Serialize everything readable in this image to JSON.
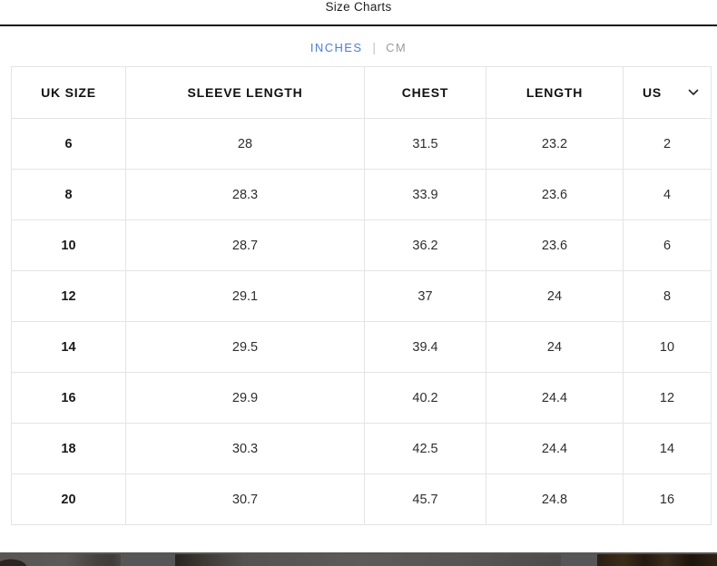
{
  "header": {
    "title": "Size Charts"
  },
  "tabs": {
    "inches_label": "INCHES",
    "separator": "|",
    "cm_label": "CM",
    "active": "INCHES",
    "active_color": "#4a80d9",
    "inactive_color": "#9b9b9b"
  },
  "table": {
    "columns": [
      "UK SIZE",
      "SLEEVE LENGTH",
      "CHEST",
      "LENGTH",
      "US"
    ],
    "us_column": {
      "label": "US",
      "icon": "chevron-down-icon"
    },
    "rows": [
      [
        "6",
        "28",
        "31.5",
        "23.2",
        "2"
      ],
      [
        "8",
        "28.3",
        "33.9",
        "23.6",
        "4"
      ],
      [
        "10",
        "28.7",
        "36.2",
        "23.6",
        "6"
      ],
      [
        "12",
        "29.1",
        "37",
        "24",
        "8"
      ],
      [
        "14",
        "29.5",
        "39.4",
        "24",
        "10"
      ],
      [
        "16",
        "29.9",
        "40.2",
        "24.4",
        "12"
      ],
      [
        "18",
        "30.3",
        "42.5",
        "24.4",
        "14"
      ],
      [
        "20",
        "30.7",
        "45.7",
        "24.8",
        "16"
      ]
    ]
  },
  "bottom_strip": {
    "base_color": "#565656",
    "thumbnails": [
      {
        "name": "product-photo-left",
        "dominant_color": "#4c4946"
      },
      {
        "name": "product-photo-center",
        "dominant_color": "#555351"
      },
      {
        "name": "product-photo-right",
        "dominant_color": "#2e2315"
      }
    ]
  }
}
